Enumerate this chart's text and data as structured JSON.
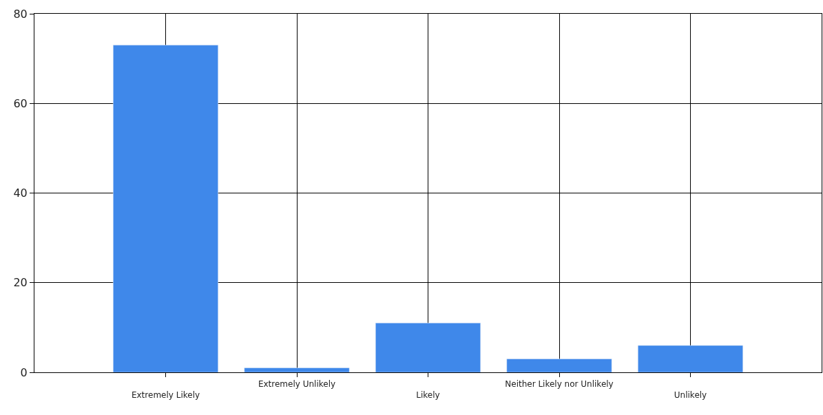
{
  "chart_data": {
    "type": "bar",
    "categories": [
      "Extremely Likely",
      "Extremely Unlikely",
      "Likely",
      "Neither Likely nor Unlikely",
      "Unlikely"
    ],
    "values": [
      73,
      1,
      11,
      3,
      6
    ],
    "color": "#3f88ea",
    "ylim": [
      0,
      80
    ],
    "yticks": [
      0,
      20,
      40,
      60,
      80
    ],
    "grid": true,
    "legend": false
  }
}
